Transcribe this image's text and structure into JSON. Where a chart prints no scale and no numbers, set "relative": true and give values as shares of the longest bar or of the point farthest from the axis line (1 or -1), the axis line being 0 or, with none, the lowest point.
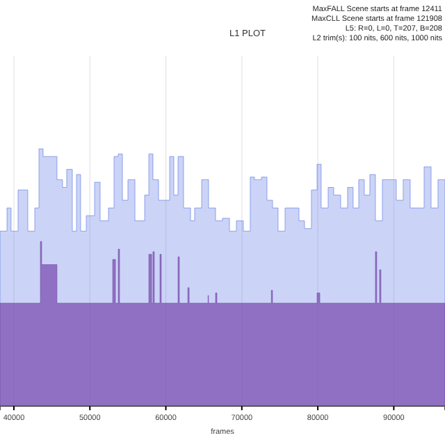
{
  "chart_data": {
    "type": "area",
    "title": "L1 PLOT",
    "xlabel": "frames",
    "relative": true,
    "grid": "x",
    "annotations": [
      "MaxFALL Scene starts at frame 12411",
      "MaxCLL Scene starts at frame 121908",
      "L5: R=0, L=0, T=207, B=208",
      "L2 trim(s): 100 nits, 600 nits, 1000 nits"
    ],
    "xlim": [
      38170,
      96740
    ],
    "xticks": [
      40000,
      50000,
      60000,
      70000,
      80000,
      90000
    ],
    "series": [
      {
        "color": "#5470e0",
        "x": [
          38170,
          39090,
          39630,
          40550,
          41280,
          41830,
          42750,
          43300,
          43840,
          45120,
          45670,
          46400,
          46950,
          47690,
          48240,
          48780,
          49520,
          50620,
          51350,
          52450,
          53180,
          53730,
          54280,
          55010,
          55930,
          57210,
          57760,
          58300,
          59040,
          59770,
          60500,
          61050,
          61600,
          62330,
          63250,
          63790,
          64710,
          65620,
          66540,
          67450,
          68370,
          69280,
          70200,
          71110,
          71660,
          72580,
          73310,
          74040,
          74770,
          75690,
          76600,
          77520,
          78250,
          79160,
          79900,
          80440,
          81360,
          82090,
          83010,
          83920,
          84650,
          85390,
          86120,
          86850,
          87580,
          88500,
          89410,
          90330,
          91240,
          92160,
          93080,
          93990,
          94910,
          95820,
          96740
        ],
        "values": [
          0.68,
          0.77,
          0.68,
          0.84,
          0.84,
          0.68,
          0.77,
          1,
          0.97,
          0.97,
          0.88,
          0.85,
          0.92,
          0.68,
          0.9,
          0.68,
          0.74,
          0.87,
          0.72,
          0.77,
          0.97,
          0.98,
          0.8,
          0.88,
          0.72,
          0.82,
          0.98,
          0.88,
          0.8,
          0.8,
          0.97,
          0.82,
          0.97,
          0.77,
          0.72,
          0.77,
          0.88,
          0.77,
          0.72,
          0.73,
          0.68,
          0.72,
          0.68,
          0.89,
          0.88,
          0.89,
          0.8,
          0.77,
          0.68,
          0.77,
          0.77,
          0.72,
          0.69,
          0.84,
          0.94,
          0.77,
          0.85,
          0.82,
          0.77,
          0.85,
          0.77,
          0.88,
          0.82,
          0.9,
          0.72,
          0.88,
          0.88,
          0.8,
          0.88,
          0.77,
          0.77,
          0.93,
          0.77,
          0.88,
          0.82
        ]
      },
      {
        "color": "#7b4fb0",
        "x": [
          38170,
          43300,
          43480,
          43660,
          45120,
          45670,
          53000,
          53370,
          53730,
          53910,
          57760,
          58130,
          58300,
          58480,
          59220,
          59400,
          61600,
          61780,
          62890,
          63070,
          65550,
          65620,
          66540,
          66720,
          73880,
          74040,
          79900,
          80270,
          87580,
          87760,
          88130,
          88310,
          96740
        ],
        "values": [
          0.4,
          0.4,
          0.64,
          0.55,
          0.55,
          0.4,
          0.57,
          0.4,
          0.61,
          0.4,
          0.59,
          0.4,
          0.6,
          0.4,
          0.59,
          0.4,
          0.58,
          0.4,
          0.46,
          0.4,
          0.43,
          0.4,
          0.44,
          0.4,
          0.45,
          0.4,
          0.44,
          0.4,
          0.6,
          0.4,
          0.53,
          0.4,
          0.4
        ]
      }
    ]
  }
}
